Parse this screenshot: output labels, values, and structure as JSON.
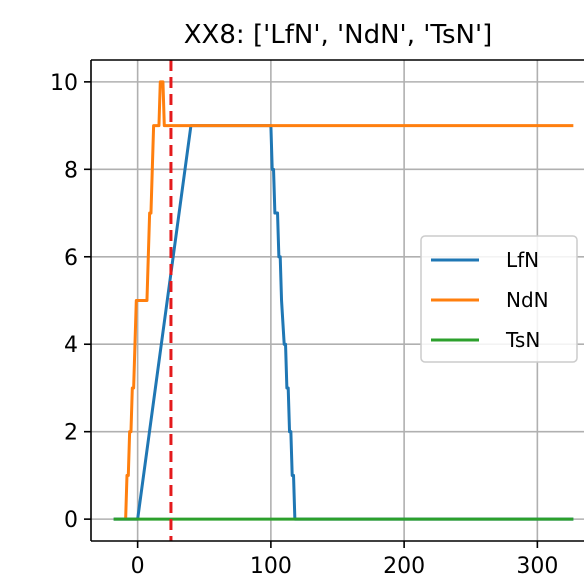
{
  "chart_data": {
    "type": "line",
    "title": "XX8: ['LfN', 'NdN', 'TsN']",
    "xlabel": "",
    "ylabel": "",
    "xlim": [
      -35,
      335
    ],
    "ylim": [
      -0.5,
      10.5
    ],
    "x_ticks": [
      0,
      100,
      200,
      300
    ],
    "x_tick_labels": [
      "0",
      "100",
      "200",
      "300"
    ],
    "y_ticks": [
      0,
      2,
      4,
      6,
      8,
      10
    ],
    "y_tick_labels": [
      "0",
      "2",
      "4",
      "6",
      "8",
      "10"
    ],
    "grid": true,
    "legend_position": "center-right",
    "vertical_line": {
      "x": 25,
      "color": "#e41a1c",
      "style": "dashed"
    },
    "series": [
      {
        "name": "LfN",
        "color": "#1f77b4",
        "points": [
          [
            -18,
            0
          ],
          [
            0,
            0
          ],
          [
            40,
            9
          ],
          [
            99,
            9
          ],
          [
            100,
            9
          ],
          [
            101,
            8
          ],
          [
            102,
            8
          ],
          [
            103,
            7
          ],
          [
            104,
            7
          ],
          [
            105,
            7
          ],
          [
            106,
            6
          ],
          [
            107,
            6
          ],
          [
            108,
            5
          ],
          [
            110,
            4
          ],
          [
            111,
            4
          ],
          [
            112,
            3
          ],
          [
            113,
            3
          ],
          [
            114,
            2
          ],
          [
            115,
            2
          ],
          [
            116,
            1
          ],
          [
            117,
            1
          ],
          [
            118,
            0
          ],
          [
            200,
            0
          ],
          [
            327,
            0
          ]
        ]
      },
      {
        "name": "NdN",
        "color": "#ff7f0e",
        "points": [
          [
            -9,
            0
          ],
          [
            -8,
            1
          ],
          [
            -7,
            1
          ],
          [
            -6,
            2
          ],
          [
            -5,
            2
          ],
          [
            -4,
            3
          ],
          [
            -3,
            3
          ],
          [
            -2,
            4
          ],
          [
            -1,
            5
          ],
          [
            7,
            5
          ],
          [
            8,
            6
          ],
          [
            9,
            7
          ],
          [
            10,
            7
          ],
          [
            11,
            8
          ],
          [
            12,
            9
          ],
          [
            16,
            9
          ],
          [
            17,
            10
          ],
          [
            19,
            10
          ],
          [
            20,
            9
          ],
          [
            327,
            9
          ]
        ]
      },
      {
        "name": "TsN",
        "color": "#2ca02c",
        "points": [
          [
            -18,
            0
          ],
          [
            100,
            0
          ],
          [
            200,
            0
          ],
          [
            327,
            0
          ]
        ]
      }
    ]
  }
}
